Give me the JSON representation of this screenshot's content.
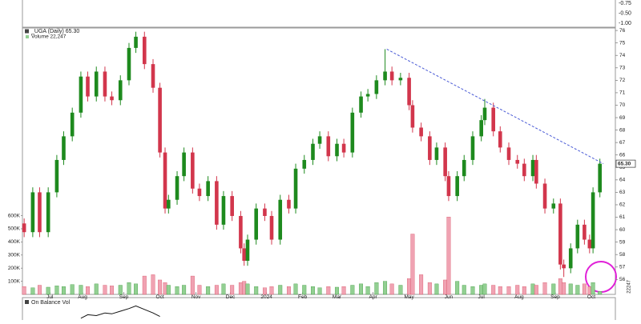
{
  "chart_data": {
    "type": "candlestick",
    "title": "_UGA (Daily) 65.30",
    "volume_label": "Volume 22,247",
    "x": [
      0,
      5,
      9,
      14,
      19,
      23,
      28,
      33,
      37,
      42,
      47,
      51,
      56,
      61,
      65,
      70,
      75,
      79,
      82,
      84,
      89,
      93,
      98,
      102,
      107,
      112,
      116,
      121,
      126,
      128,
      130,
      135,
      140,
      144,
      149,
      154,
      158,
      163,
      168,
      172,
      177,
      182,
      186,
      191,
      196,
      200,
      205,
      210,
      214,
      219,
      224,
      226,
      231,
      236,
      240,
      245,
      247,
      252,
      256,
      261,
      266,
      268,
      273,
      277,
      282,
      287,
      291,
      296,
      298,
      303,
      308,
      312,
      314,
      318,
      322,
      326,
      329,
      331,
      335
    ],
    "open": [
      60.5,
      59.8,
      63.0,
      59.8,
      63.0,
      65.6,
      67.5,
      69.4,
      72.3,
      70.7,
      72.7,
      70.7,
      70.4,
      72.0,
      74.6,
      75.5,
      73.3,
      71.4,
      66.2,
      61.7,
      62.4,
      64.3,
      66.2,
      63.3,
      62.7,
      63.9,
      60.4,
      62.7,
      61.1,
      58.5,
      57.5,
      59.2,
      61.7,
      61.1,
      59.2,
      62.4,
      61.7,
      64.9,
      65.6,
      66.9,
      67.5,
      65.9,
      66.9,
      66.2,
      69.4,
      70.7,
      70.9,
      72.0,
      72.7,
      72.0,
      72.2,
      70.0,
      68.2,
      67.5,
      65.6,
      66.6,
      64.3,
      62.7,
      64.3,
      65.6,
      67.5,
      68.8,
      69.8,
      67.9,
      66.6,
      65.6,
      65.3,
      64.3,
      65.6,
      63.7,
      61.7,
      62.1,
      57.2,
      56.9,
      58.5,
      60.4,
      59.2,
      58.5,
      63.0
    ],
    "high": [
      60.9,
      63.4,
      63.4,
      63.4,
      66.0,
      67.9,
      69.8,
      72.7,
      72.7,
      73.1,
      73.1,
      71.1,
      72.4,
      75.0,
      75.9,
      75.9,
      73.7,
      71.8,
      66.6,
      62.8,
      64.7,
      66.6,
      66.6,
      63.7,
      64.3,
      64.3,
      63.1,
      63.1,
      61.5,
      58.9,
      59.6,
      62.1,
      62.1,
      61.5,
      62.8,
      62.8,
      65.3,
      66.0,
      67.3,
      67.9,
      67.9,
      67.3,
      67.3,
      69.8,
      71.1,
      71.3,
      72.4,
      74.5,
      73.1,
      72.6,
      72.6,
      70.4,
      68.6,
      67.9,
      67.0,
      67.0,
      64.7,
      64.7,
      66.0,
      67.9,
      69.2,
      70.5,
      70.2,
      68.3,
      67.0,
      66.0,
      65.7,
      66.0,
      66.0,
      64.1,
      62.5,
      62.5,
      57.6,
      58.9,
      60.8,
      60.8,
      59.6,
      63.4,
      65.7
    ],
    "low": [
      59.4,
      59.4,
      59.4,
      59.4,
      62.6,
      65.2,
      67.1,
      69.0,
      70.3,
      70.3,
      70.3,
      70.0,
      70.0,
      71.6,
      74.2,
      72.9,
      71.0,
      65.8,
      61.3,
      61.3,
      62.0,
      63.9,
      62.9,
      62.3,
      62.3,
      60.0,
      60.0,
      60.7,
      58.1,
      57.1,
      57.1,
      58.8,
      60.7,
      58.8,
      58.8,
      61.3,
      61.3,
      64.5,
      65.2,
      66.5,
      65.5,
      65.5,
      65.8,
      65.8,
      69.0,
      70.3,
      70.5,
      71.6,
      71.6,
      71.6,
      69.6,
      67.8,
      67.1,
      65.2,
      65.2,
      63.9,
      62.3,
      62.3,
      63.9,
      65.2,
      67.1,
      68.4,
      67.5,
      66.2,
      65.2,
      64.9,
      63.9,
      63.9,
      63.3,
      61.3,
      61.3,
      56.8,
      56.2,
      56.5,
      58.1,
      58.8,
      58.1,
      58.1,
      62.6
    ],
    "close": [
      59.8,
      63.0,
      59.8,
      63.0,
      65.6,
      67.5,
      69.4,
      72.3,
      70.7,
      72.7,
      70.7,
      70.4,
      72.0,
      74.6,
      75.5,
      73.3,
      71.4,
      66.2,
      61.7,
      62.4,
      64.3,
      66.2,
      63.3,
      62.7,
      63.9,
      60.4,
      62.7,
      61.1,
      58.5,
      57.5,
      59.2,
      61.7,
      61.1,
      59.2,
      62.4,
      61.7,
      64.9,
      65.6,
      66.9,
      67.5,
      65.9,
      66.9,
      66.2,
      69.4,
      70.7,
      70.9,
      72.0,
      72.7,
      72.0,
      72.2,
      70.0,
      68.2,
      67.5,
      65.6,
      66.6,
      64.3,
      62.7,
      64.3,
      65.6,
      67.5,
      68.8,
      69.8,
      67.9,
      66.6,
      65.6,
      65.3,
      64.3,
      65.6,
      63.7,
      61.7,
      62.1,
      57.2,
      56.9,
      58.5,
      60.4,
      59.2,
      58.5,
      63.0,
      65.3
    ],
    "volume": [
      60000,
      50000,
      70000,
      55000,
      65000,
      60000,
      75000,
      70000,
      60000,
      80000,
      70000,
      65000,
      70000,
      90000,
      80000,
      140000,
      150000,
      110000,
      90000,
      70000,
      60000,
      70000,
      140000,
      70000,
      60000,
      70000,
      80000,
      70000,
      90000,
      100000,
      80000,
      60000,
      50000,
      60000,
      70000,
      60000,
      80000,
      70000,
      60000,
      50000,
      60000,
      55000,
      60000,
      70000,
      80000,
      60000,
      90000,
      100000,
      80000,
      70000,
      120000,
      460000,
      150000,
      90000,
      80000,
      110000,
      590000,
      100000,
      70000,
      60000,
      70000,
      80000,
      70000,
      60000,
      60000,
      70000,
      60000,
      80000,
      70000,
      90000,
      80000,
      120000,
      90000,
      80000,
      70000,
      80000,
      60000,
      90000,
      22247
    ],
    "volume_last_label": {
      "value": 22247,
      "label": "22247"
    },
    "up_color": "#1e8a1e",
    "down_color": "#d2364c",
    "volume_up_color": "#92cf92",
    "volume_down_color": "#f0a2b2",
    "xlim": [
      -1,
      344
    ],
    "xticks": [
      {
        "value": 15,
        "label": "Jul"
      },
      {
        "value": 34,
        "label": "Aug"
      },
      {
        "value": 58,
        "label": "Sep"
      },
      {
        "value": 79,
        "label": "Oct"
      },
      {
        "value": 100,
        "label": "Nov"
      },
      {
        "value": 120,
        "label": "Dec"
      },
      {
        "value": 141,
        "label": "2024"
      },
      {
        "value": 162,
        "label": "Feb"
      },
      {
        "value": 182,
        "label": "Mar"
      },
      {
        "value": 203,
        "label": "Apr"
      },
      {
        "value": 224,
        "label": "May"
      },
      {
        "value": 247,
        "label": "Jun"
      },
      {
        "value": 266,
        "label": "Jul"
      },
      {
        "value": 288,
        "label": "Aug"
      },
      {
        "value": 309,
        "label": "Sep"
      },
      {
        "value": 330,
        "label": "Oct"
      }
    ],
    "ylim": [
      54.8,
      76.2
    ],
    "yticks": [
      56,
      57,
      58,
      59,
      60,
      61,
      62,
      63,
      64,
      65,
      66,
      67,
      68,
      69,
      70,
      71,
      72,
      73,
      74,
      75,
      76
    ],
    "y2lim": [
      0,
      2030000
    ],
    "y2ticks": [
      {
        "value": 100000,
        "label": "100K"
      },
      {
        "value": 200000,
        "label": "200K"
      },
      {
        "value": 300000,
        "label": "300K"
      },
      {
        "value": 400000,
        "label": "400K"
      },
      {
        "value": 500000,
        "label": "500K"
      },
      {
        "value": 600000,
        "label": "600K"
      }
    ],
    "trendline": {
      "x": [
        211,
        337
      ],
      "y": [
        74.5,
        65.3
      ],
      "color": "#4a5bd6"
    },
    "price_tag": {
      "value": 65.3,
      "label": "65.30"
    },
    "top_panel": {
      "labels": [
        "-0.75",
        "-0.50",
        "-1.00"
      ]
    },
    "obv": {
      "name": "On Balance Vol",
      "x": [
        33,
        37,
        42,
        47,
        51,
        56,
        61,
        65,
        70,
        75,
        79
      ],
      "values": [
        1,
        3,
        2.5,
        4,
        3.5,
        5,
        6.5,
        8,
        6,
        4,
        2
      ],
      "ylim": [
        0,
        10
      ],
      "color": "#111111"
    }
  }
}
